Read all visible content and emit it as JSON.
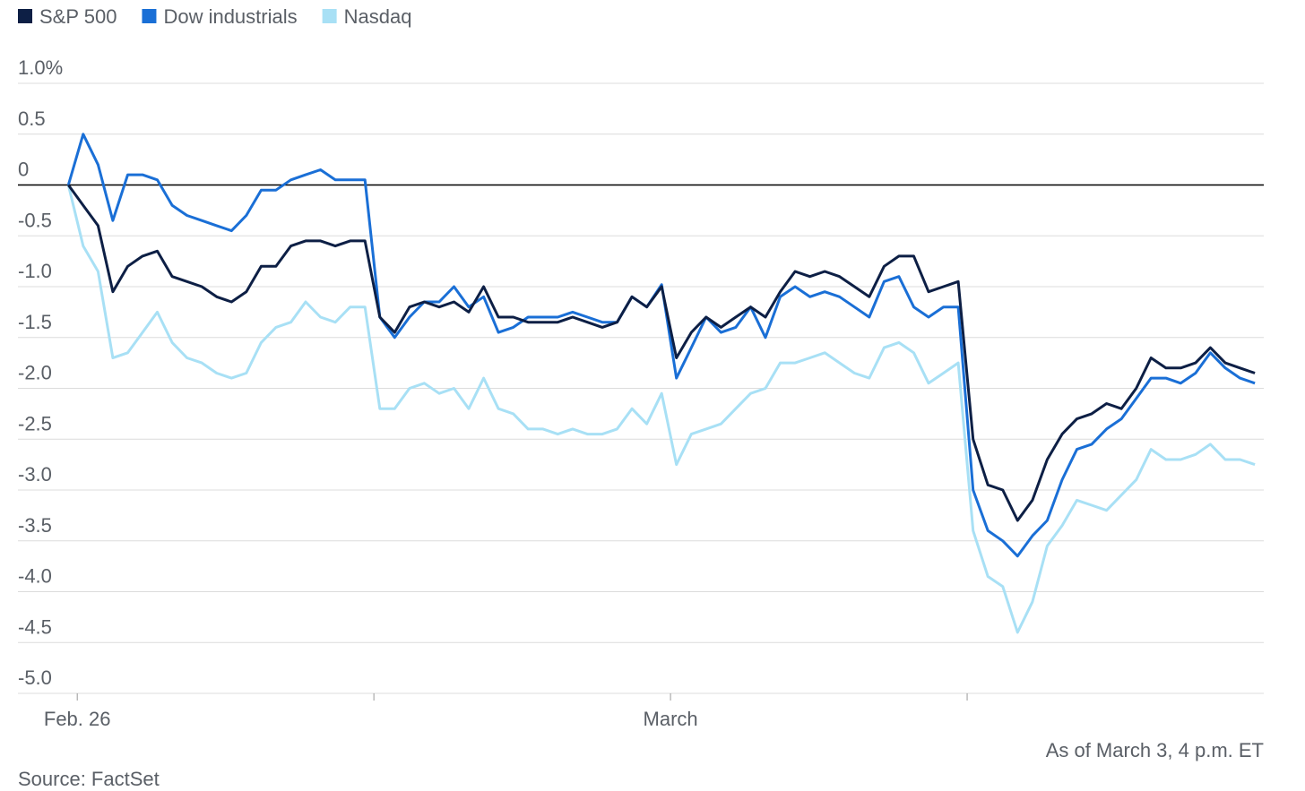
{
  "chart_data": {
    "type": "line",
    "source": "Source: FactSet",
    "note": "As of March 3, 4 p.m. ET",
    "x": [
      -0.03,
      0.02,
      0.07,
      0.12,
      0.17,
      0.22,
      0.27,
      0.32,
      0.37,
      0.42,
      0.47,
      0.52,
      0.57,
      0.62,
      0.67,
      0.72,
      0.77,
      0.82,
      0.87,
      0.92,
      0.97,
      1.02,
      1.07,
      1.12,
      1.17,
      1.22,
      1.27,
      1.32,
      1.37,
      1.42,
      1.47,
      1.52,
      1.57,
      1.62,
      1.67,
      1.72,
      1.77,
      1.82,
      1.87,
      1.92,
      1.97,
      2.02,
      2.07,
      2.12,
      2.17,
      2.22,
      2.27,
      2.32,
      2.37,
      2.42,
      2.47,
      2.52,
      2.57,
      2.62,
      2.67,
      2.72,
      2.77,
      2.82,
      2.87,
      2.92,
      2.97,
      3.02,
      3.07,
      3.12,
      3.17,
      3.22,
      3.27,
      3.32,
      3.37,
      3.42,
      3.47,
      3.52,
      3.57,
      3.62,
      3.67,
      3.72,
      3.77,
      3.82,
      3.87,
      3.92,
      3.97
    ],
    "xlim": [
      -0.2,
      4.0
    ],
    "xticks": [
      0,
      1,
      2,
      3
    ],
    "xtick_labels": [
      {
        "value": 0,
        "label": "Feb. 26"
      },
      {
        "value": 2,
        "label": "March"
      }
    ],
    "ylim": [
      -5,
      1
    ],
    "yticks": [
      {
        "value": 1,
        "label": "1.0%"
      },
      0.5,
      0,
      -0.5,
      {
        "value": -1,
        "label": "-1.0"
      },
      -1.5,
      {
        "value": -2,
        "label": "-2.0"
      },
      -2.5,
      {
        "value": -3,
        "label": "-3.0"
      },
      -3.5,
      {
        "value": -4,
        "label": "-4.0"
      },
      -4.5,
      {
        "value": -5,
        "label": "-5.0"
      }
    ],
    "grid": true,
    "legend": "top-left",
    "series": [
      {
        "name": "S&P 500",
        "color": "#0d1f45",
        "values": [
          0,
          -0.2,
          -0.4,
          -1.05,
          -0.8,
          -0.7,
          -0.65,
          -0.9,
          -0.95,
          -1.0,
          -1.1,
          -1.15,
          -1.05,
          -0.8,
          -0.8,
          -0.6,
          -0.55,
          -0.55,
          -0.6,
          -0.55,
          -0.55,
          -1.3,
          -1.45,
          -1.2,
          -1.15,
          -1.2,
          -1.15,
          -1.25,
          -1.0,
          -1.3,
          -1.3,
          -1.35,
          -1.35,
          -1.35,
          -1.3,
          -1.35,
          -1.4,
          -1.35,
          -1.1,
          -1.2,
          -1.0,
          -1.7,
          -1.45,
          -1.3,
          -1.4,
          -1.3,
          -1.2,
          -1.3,
          -1.05,
          -0.85,
          -0.9,
          -0.85,
          -0.9,
          -1.0,
          -1.1,
          -0.8,
          -0.7,
          -0.7,
          -1.05,
          -1.0,
          -0.95,
          -2.5,
          -2.95,
          -3.0,
          -3.3,
          -3.1,
          -2.7,
          -2.45,
          -2.3,
          -2.25,
          -2.15,
          -2.2,
          -2.0,
          -1.7,
          -1.8,
          -1.8,
          -1.75,
          -1.6,
          -1.75,
          -1.8,
          -1.85
        ]
      },
      {
        "name": "Dow industrials",
        "color": "#1a6fd6",
        "values": [
          0,
          0.5,
          0.2,
          -0.35,
          0.1,
          0.1,
          0.05,
          -0.2,
          -0.3,
          -0.35,
          -0.4,
          -0.45,
          -0.3,
          -0.05,
          -0.05,
          0.05,
          0.1,
          0.15,
          0.05,
          0.05,
          0.05,
          -1.3,
          -1.5,
          -1.3,
          -1.15,
          -1.15,
          -1.0,
          -1.2,
          -1.1,
          -1.45,
          -1.4,
          -1.3,
          -1.3,
          -1.3,
          -1.25,
          -1.3,
          -1.35,
          -1.35,
          -1.1,
          -1.2,
          -0.98,
          -1.9,
          -1.6,
          -1.3,
          -1.45,
          -1.4,
          -1.2,
          -1.5,
          -1.1,
          -1.0,
          -1.1,
          -1.05,
          -1.1,
          -1.2,
          -1.3,
          -0.95,
          -0.9,
          -1.2,
          -1.3,
          -1.2,
          -1.2,
          -3.0,
          -3.4,
          -3.5,
          -3.65,
          -3.45,
          -3.3,
          -2.9,
          -2.6,
          -2.55,
          -2.4,
          -2.3,
          -2.1,
          -1.9,
          -1.9,
          -1.95,
          -1.85,
          -1.65,
          -1.8,
          -1.9,
          -1.95
        ]
      },
      {
        "name": "Nasdaq",
        "color": "#a8e0f5",
        "values": [
          0,
          -0.6,
          -0.85,
          -1.7,
          -1.65,
          -1.45,
          -1.25,
          -1.55,
          -1.7,
          -1.75,
          -1.85,
          -1.9,
          -1.85,
          -1.55,
          -1.4,
          -1.35,
          -1.15,
          -1.3,
          -1.35,
          -1.2,
          -1.2,
          -2.2,
          -2.2,
          -2.0,
          -1.95,
          -2.05,
          -2.0,
          -2.2,
          -1.9,
          -2.2,
          -2.25,
          -2.4,
          -2.4,
          -2.45,
          -2.4,
          -2.45,
          -2.45,
          -2.4,
          -2.2,
          -2.35,
          -2.05,
          -2.75,
          -2.45,
          -2.4,
          -2.35,
          -2.2,
          -2.05,
          -2.0,
          -1.75,
          -1.75,
          -1.7,
          -1.65,
          -1.75,
          -1.85,
          -1.9,
          -1.6,
          -1.55,
          -1.65,
          -1.95,
          -1.85,
          -1.75,
          -3.4,
          -3.85,
          -3.95,
          -4.4,
          -4.1,
          -3.55,
          -3.35,
          -3.1,
          -3.15,
          -3.2,
          -3.05,
          -2.9,
          -2.6,
          -2.7,
          -2.7,
          -2.65,
          -2.55,
          -2.7,
          -2.7,
          -2.75
        ]
      }
    ]
  }
}
